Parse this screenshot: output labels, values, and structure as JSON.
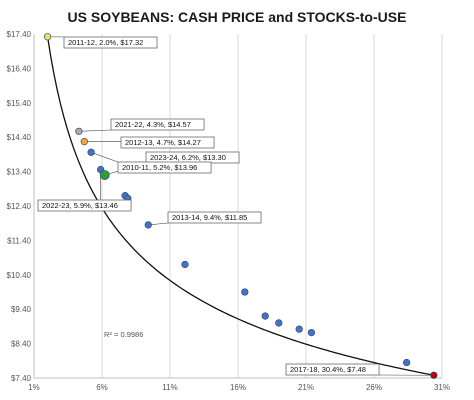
{
  "chart_data": {
    "type": "scatter",
    "title": "US SOYBEANS: CASH PRICE and STOCKS-to-USE",
    "xlabel": "",
    "ylabel": "",
    "xlim": [
      1,
      31
    ],
    "ylim": [
      7.4,
      17.4
    ],
    "x_ticks": [
      "1%",
      "6%",
      "11%",
      "16%",
      "21%",
      "26%",
      "31%"
    ],
    "y_ticks": [
      "$7.40",
      "$8.40",
      "$9.40",
      "$10.40",
      "$11.40",
      "$12.40",
      "$13.40",
      "$14.40",
      "$15.40",
      "$16.40",
      "$17.40"
    ],
    "grid": "vertical",
    "points": [
      {
        "x": 2.0,
        "y": 17.32,
        "color": "#f4e04d"
      },
      {
        "x": 4.3,
        "y": 14.57,
        "color": "#a9a9a9"
      },
      {
        "x": 4.7,
        "y": 14.27,
        "color": "#f0a830"
      },
      {
        "x": 5.2,
        "y": 13.96,
        "color": "#4472c4"
      },
      {
        "x": 5.9,
        "y": 13.46,
        "color": "#4472c4"
      },
      {
        "x": 6.2,
        "y": 13.3,
        "color": "#2e9e2e"
      },
      {
        "x": 7.7,
        "y": 12.7,
        "color": "#4472c4"
      },
      {
        "x": 7.9,
        "y": 12.62,
        "color": "#4472c4"
      },
      {
        "x": 9.4,
        "y": 11.85,
        "color": "#4472c4"
      },
      {
        "x": 12.1,
        "y": 10.7,
        "color": "#4472c4"
      },
      {
        "x": 16.5,
        "y": 9.9,
        "color": "#4472c4"
      },
      {
        "x": 18.0,
        "y": 9.2,
        "color": "#4472c4"
      },
      {
        "x": 19.0,
        "y": 9.0,
        "color": "#4472c4"
      },
      {
        "x": 20.5,
        "y": 8.82,
        "color": "#4472c4"
      },
      {
        "x": 21.4,
        "y": 8.72,
        "color": "#4472c4"
      },
      {
        "x": 28.4,
        "y": 7.85,
        "color": "#4472c4"
      },
      {
        "x": 30.4,
        "y": 7.48,
        "color": "#c00000"
      }
    ],
    "annotations": [
      {
        "text": "2011-12, 2.0%, $17.32",
        "point": 0
      },
      {
        "text": "2021-22, 4.3%, $14.57",
        "point": 1
      },
      {
        "text": "2012-13, 4.7%, $14.27",
        "point": 2
      },
      {
        "text": "2023-24, 6.2%, $13.30",
        "point": 5
      },
      {
        "text": "2010-11, 5.2%, $13.96",
        "point": 3
      },
      {
        "text": "2022-23, 5.9%, $13.46",
        "point": 4
      },
      {
        "text": "2013-14, 9.4%, $11.85",
        "point": 8
      },
      {
        "text": "2017-18, 30.4%, $7.48",
        "point": 16
      }
    ],
    "trendline": {
      "a": 11.4,
      "b": 0.0
    },
    "r_squared": "R² = 0.9986"
  }
}
